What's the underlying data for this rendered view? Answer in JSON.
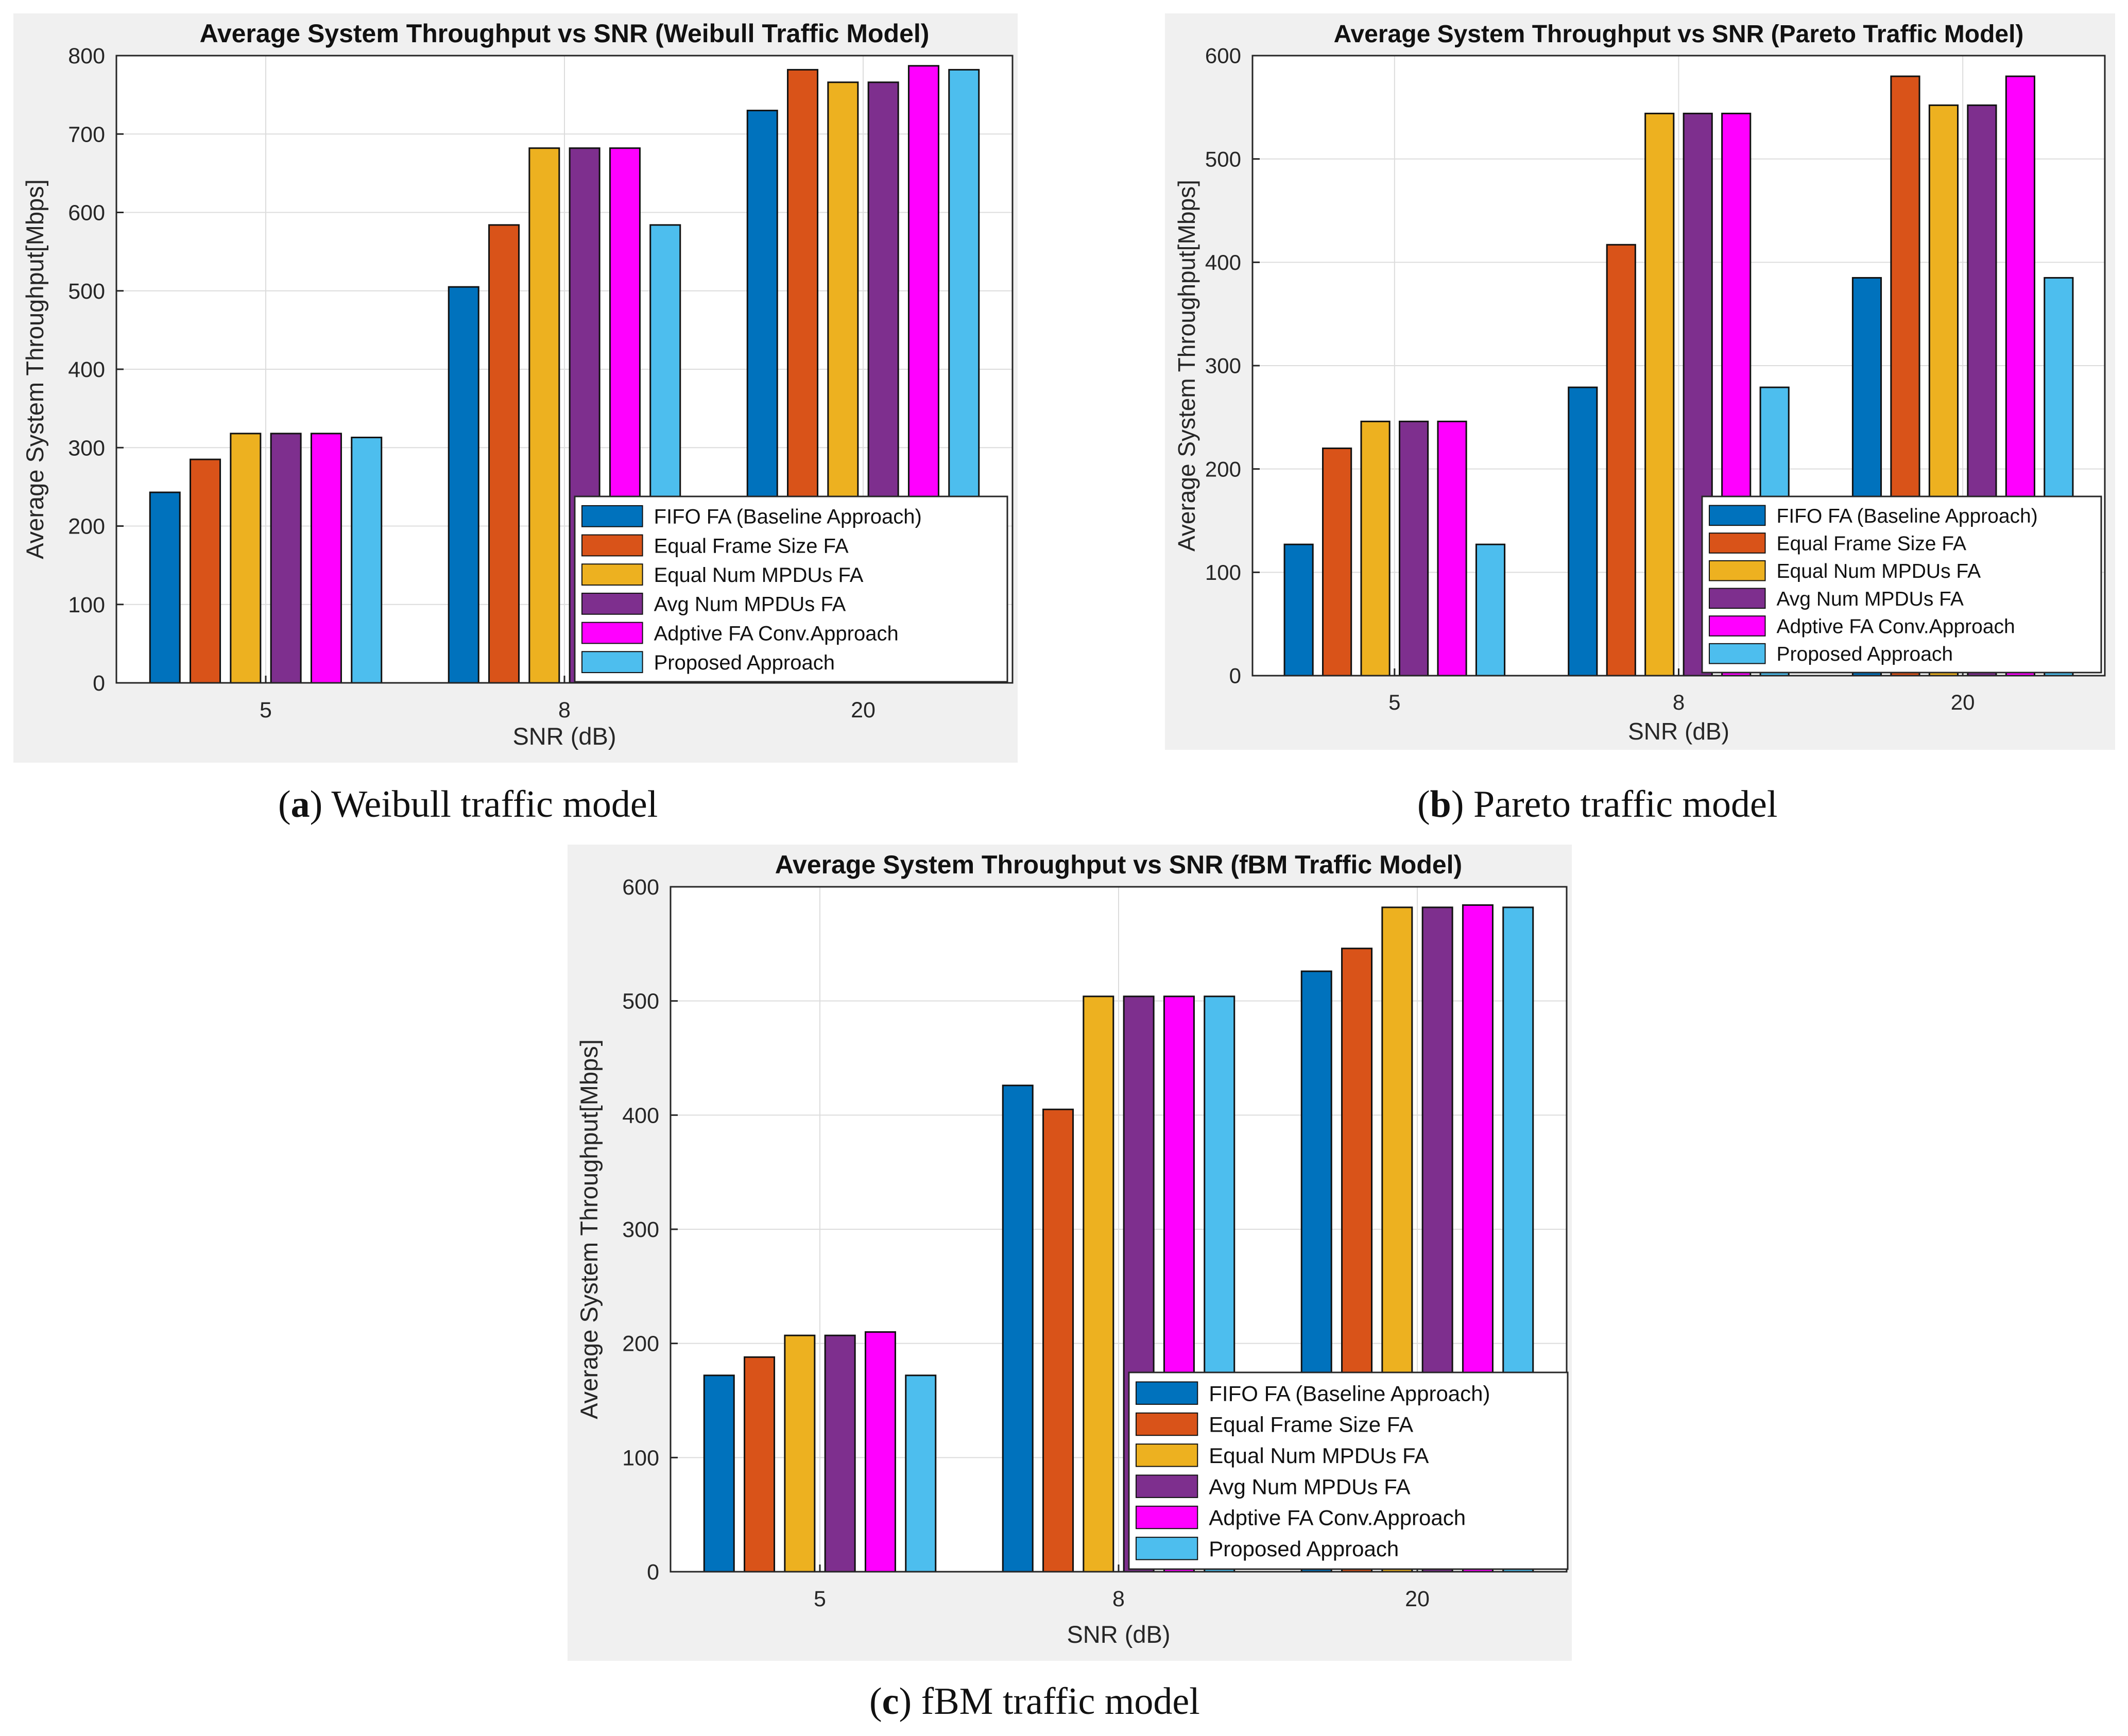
{
  "legend_labels": [
    "FIFO FA (Baseline Approach)",
    "Equal Frame Size FA",
    "Equal Num MPDUs FA",
    "Avg Num MPDUs FA",
    "Adptive FA Conv.Approach",
    "Proposed Approach"
  ],
  "colors": [
    "#0072BD",
    "#D95319",
    "#EDB120",
    "#7E2F8E",
    "#FF00FF",
    "#4DBEEE"
  ],
  "charts": [
    {
      "caption_letter": "a",
      "caption_text": " Weibull traffic model",
      "chart_data": {
        "type": "bar",
        "title": "Average System Throughput vs SNR (Weibull Traffic Model)",
        "xlabel": "SNR (dB)",
        "ylabel": "Average System Throughput[Mbps]",
        "categories": [
          "5",
          "8",
          "20"
        ],
        "ylim": [
          0,
          800
        ],
        "yticks": [
          0,
          100,
          200,
          300,
          400,
          500,
          600,
          700,
          800
        ],
        "grid": true,
        "legend_position": "bottom-right",
        "series": [
          {
            "name": "FIFO FA (Baseline Approach)",
            "values": [
              243,
              505,
              730
            ]
          },
          {
            "name": "Equal Frame Size FA",
            "values": [
              285,
              584,
              782
            ]
          },
          {
            "name": "Equal Num MPDUs FA",
            "values": [
              318,
              682,
              766
            ]
          },
          {
            "name": "Avg Num MPDUs FA",
            "values": [
              318,
              682,
              766
            ]
          },
          {
            "name": "Adptive FA Conv.Approach",
            "values": [
              318,
              682,
              787
            ]
          },
          {
            "name": "Proposed Approach",
            "values": [
              313,
              584,
              782
            ]
          }
        ]
      }
    },
    {
      "caption_letter": "b",
      "caption_text": " Pareto traffic model",
      "chart_data": {
        "type": "bar",
        "title": "Average System Throughput vs SNR (Pareto Traffic Model)",
        "xlabel": "SNR (dB)",
        "ylabel": "Average System Throughput[Mbps]",
        "categories": [
          "5",
          "8",
          "20"
        ],
        "ylim": [
          0,
          600
        ],
        "yticks": [
          0,
          100,
          200,
          300,
          400,
          500,
          600
        ],
        "grid": true,
        "legend_position": "bottom-right",
        "series": [
          {
            "name": "FIFO FA (Baseline Approach)",
            "values": [
              127,
              279,
              385
            ]
          },
          {
            "name": "Equal Frame Size FA",
            "values": [
              220,
              417,
              580
            ]
          },
          {
            "name": "Equal Num MPDUs FA",
            "values": [
              246,
              544,
              552
            ]
          },
          {
            "name": "Avg Num MPDUs FA",
            "values": [
              246,
              544,
              552
            ]
          },
          {
            "name": "Adptive FA Conv.Approach",
            "values": [
              246,
              544,
              580
            ]
          },
          {
            "name": "Proposed Approach",
            "values": [
              127,
              279,
              385
            ]
          }
        ]
      }
    },
    {
      "caption_letter": "c",
      "caption_text": " fBM traffic model",
      "chart_data": {
        "type": "bar",
        "title": "Average System Throughput vs SNR (fBM Traffic Model)",
        "xlabel": "SNR (dB)",
        "ylabel": "Average System Throughput[Mbps]",
        "categories": [
          "5",
          "8",
          "20"
        ],
        "ylim": [
          0,
          600
        ],
        "yticks": [
          0,
          100,
          200,
          300,
          400,
          500,
          600
        ],
        "grid": true,
        "legend_position": "bottom-right",
        "series": [
          {
            "name": "FIFO FA (Baseline Approach)",
            "values": [
              172,
              426,
              526
            ]
          },
          {
            "name": "Equal Frame Size FA",
            "values": [
              188,
              405,
              546
            ]
          },
          {
            "name": "Equal Num MPDUs FA",
            "values": [
              207,
              504,
              582
            ]
          },
          {
            "name": "Avg Num MPDUs FA",
            "values": [
              207,
              504,
              582
            ]
          },
          {
            "name": "Adptive FA Conv.Approach",
            "values": [
              210,
              504,
              584
            ]
          },
          {
            "name": "Proposed Approach",
            "values": [
              172,
              504,
              582
            ]
          }
        ]
      }
    }
  ]
}
